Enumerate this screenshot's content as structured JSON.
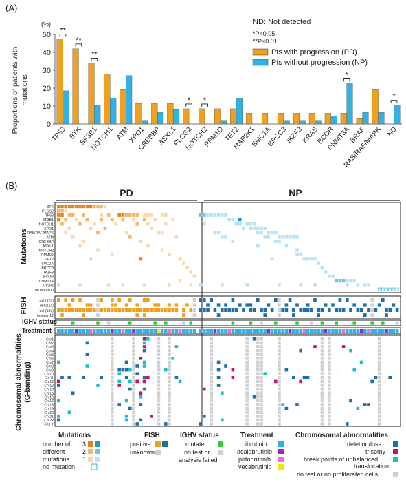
{
  "panel_a": {
    "label": "(A)",
    "unit": "(%)",
    "ylabel": "Proportions of patients with mutations",
    "nd_note": "ND: Not detected",
    "sig1": "*P<0.05",
    "sig2": "**P<0.01",
    "stars": [
      "**",
      "**",
      "**",
      "*",
      "*",
      "*",
      "*"
    ]
  },
  "panel_b": {
    "label": "(B)",
    "pd": "PD",
    "np": "NP",
    "row_titles": {
      "mutations": "Mutations",
      "fish": "FISH",
      "ighv": "IGHV status",
      "treatment": "Treatment",
      "chrom": "Chromosomal abnormalities (G-banding)"
    },
    "mutation_rows": [
      "BTK",
      "PLCG2",
      "TP53",
      "SF3B1",
      "NOTCH1",
      "XPO1",
      "RAS/RAF/MAPK",
      "ATM",
      "CREBBP",
      "ASXL1",
      "NOTCH2",
      "PPM1D",
      "TET2",
      "SMC1A",
      "BRCC3",
      "IKZF3",
      "BCOR",
      "DNMT3A",
      "Others",
      "no mutation"
    ],
    "fish_rows": [
      "del (17p)",
      "del (11q)",
      "del (13q)",
      "trisomy 12"
    ],
    "chrom_rows": [
      "Chr1",
      "Chr2",
      "Chr3",
      "Chr4",
      "Chr5",
      "Chr6",
      "Chr7",
      "Chr8",
      "Chr9",
      "Chr10",
      "Chr11",
      "Chr12",
      "Chr13",
      "Chr14",
      "Chr15",
      "Chr16",
      "Chr17",
      "Chr18",
      "Chr19",
      "Chr20",
      "Chr21",
      "Chr22",
      "X or Y"
    ]
  },
  "legend": {
    "mutations": {
      "title": "Mutations",
      "rows": [
        "number of",
        "different",
        "mutations"
      ],
      "nums": [
        "3",
        "2",
        "1"
      ],
      "none": "no mutation"
    },
    "fish": {
      "title": "FISH",
      "positive": "positive",
      "unknown": "unknown"
    },
    "ighv": {
      "title": "IGHV status",
      "mutated": "mutated",
      "notest1": "no test or",
      "notest2": "analysis failed"
    },
    "treatment": {
      "title": "Treatment",
      "items": [
        "ibrutinib",
        "acalabrutinib",
        "pirtobrutinib",
        "vecabrutinib"
      ]
    },
    "chrom": {
      "title": "Chromosomal abnormalities",
      "items": [
        "deletion/loss",
        "trisomy",
        "break points of unbalanced",
        "translocation",
        "no test or no proliferated cells"
      ]
    }
  },
  "colors": {
    "pd": "#f0a01e",
    "np": "#2fb3e6",
    "pd3": "#e8821a",
    "pd2": "#f5b56b",
    "pd1": "#fad7ae",
    "np3": "#2196d3",
    "np2": "#69c3ee",
    "np1": "#b8e2f7",
    "fish_pd": "#f0a01e",
    "fish_np": "#1e6ea8",
    "grey": "#d0d0d0",
    "ighv": "#33cc33",
    "ibrutinib": "#2fb3e6",
    "acalabrutinib": "#8b2fc9",
    "pirtobrutinib": "#ff66cc",
    "vecabrutinib": "#f2e600",
    "deletion": "#1e6ea8",
    "trisomy": "#c8106e",
    "breakpoint": "#19c0c8"
  },
  "chart_data": {
    "type": "bar",
    "categories": [
      "TP53",
      "BTK",
      "SF3B1",
      "NOTCH1",
      "ATM",
      "XPO1",
      "CREBBP",
      "ASXL1",
      "PLCG2",
      "NOTCH2",
      "PPM1D",
      "TET2",
      "MAP2K1",
      "SMC1A",
      "BRCC3",
      "IKZF3",
      "KRAS",
      "BCOR",
      "DNMT3A",
      "BRAF",
      "RAS/RAF/MAPK",
      "ND"
    ],
    "series": [
      {
        "name": "Pts with progression (PD)",
        "values": [
          47.5,
          42,
          34,
          28,
          19.5,
          11.5,
          11.5,
          11.5,
          8.5,
          8.5,
          8.5,
          8.5,
          6,
          6,
          6,
          6,
          6,
          6,
          6,
          3,
          19.5,
          0
        ]
      },
      {
        "name": "Pts without progression (NP)",
        "values": [
          18.5,
          0,
          10.5,
          14.5,
          27,
          2,
          6.5,
          8,
          0,
          0,
          2,
          14.5,
          0,
          0,
          2,
          2,
          2,
          4.5,
          22.5,
          6.5,
          6.5,
          10.5
        ]
      }
    ],
    "ylim": [
      0,
      50
    ],
    "yticks": [
      0,
      10,
      20,
      30,
      40,
      50
    ],
    "significance": [
      {
        "category": "TP53",
        "label": "**"
      },
      {
        "category": "BTK",
        "label": "**"
      },
      {
        "category": "SF3B1",
        "label": "**"
      },
      {
        "category": "PLCG2",
        "label": "*"
      },
      {
        "category": "NOTCH2",
        "label": "*"
      },
      {
        "category": "DNMT3A",
        "label": "*"
      },
      {
        "category": "ND",
        "label": "*"
      }
    ]
  }
}
